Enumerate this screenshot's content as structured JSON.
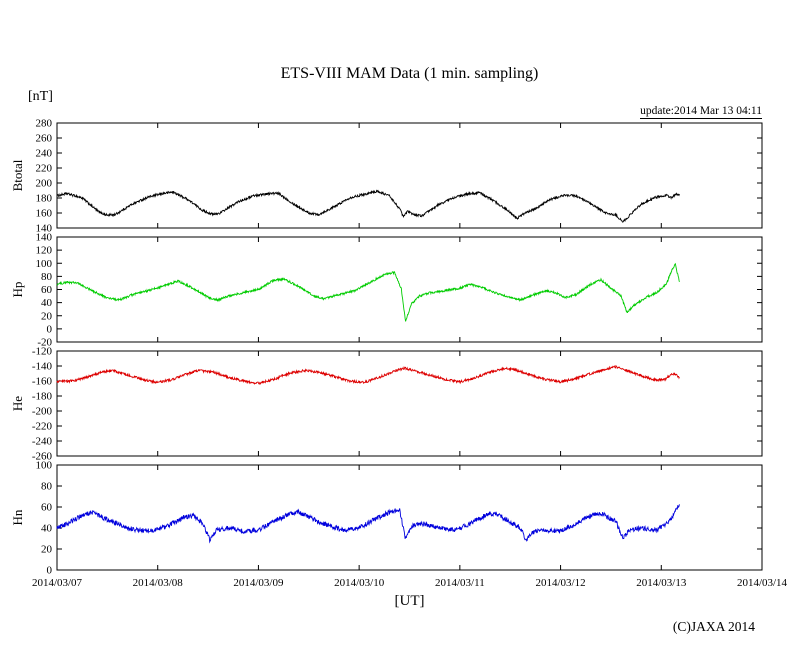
{
  "header": {
    "title": "ETS-VIII MAM Data (1 min. sampling)",
    "unit_label": "[nT]",
    "update_note": "update:2014 Mar 13 04:11"
  },
  "footer": {
    "xlabel": "[UT]",
    "copyright": "(C)JAXA 2014"
  },
  "chart_data": {
    "type": "line",
    "title": "ETS-VIII MAM Data (1 min. sampling)",
    "xlabel": "[UT]",
    "y_unit": "[nT]",
    "update_note": "update:2014 Mar 13 04:11",
    "grid": false,
    "legend": "none (per-panel y-axis titles)",
    "x_axis": {
      "tick_labels": [
        "2014/03/07",
        "2014/03/08",
        "2014/03/09",
        "2014/03/10",
        "2014/03/11",
        "2014/03/12",
        "2014/03/13",
        "2014/03/14"
      ],
      "range_days": [
        0,
        7
      ],
      "data_end_day": 6.18
    },
    "panels": [
      {
        "name": "Btotal",
        "color": "#000000",
        "ylim": [
          140,
          280
        ],
        "ytick_step": 20,
        "noise_amplitude": 1.5,
        "points_day_value": [
          [
            0.0,
            183
          ],
          [
            0.1,
            186
          ],
          [
            0.25,
            180
          ],
          [
            0.42,
            161
          ],
          [
            0.5,
            157
          ],
          [
            0.58,
            158
          ],
          [
            0.75,
            172
          ],
          [
            0.9,
            181
          ],
          [
            1.05,
            186
          ],
          [
            1.15,
            188
          ],
          [
            1.3,
            178
          ],
          [
            1.45,
            163
          ],
          [
            1.55,
            158
          ],
          [
            1.62,
            160
          ],
          [
            1.8,
            175
          ],
          [
            1.95,
            183
          ],
          [
            2.1,
            186
          ],
          [
            2.2,
            186
          ],
          [
            2.35,
            172
          ],
          [
            2.5,
            160
          ],
          [
            2.6,
            158
          ],
          [
            2.75,
            168
          ],
          [
            2.9,
            180
          ],
          [
            3.05,
            185
          ],
          [
            3.18,
            189
          ],
          [
            3.3,
            183
          ],
          [
            3.4,
            166
          ],
          [
            3.44,
            155
          ],
          [
            3.48,
            162
          ],
          [
            3.55,
            158
          ],
          [
            3.62,
            156
          ],
          [
            3.8,
            172
          ],
          [
            3.95,
            181
          ],
          [
            4.1,
            186
          ],
          [
            4.2,
            187
          ],
          [
            4.35,
            175
          ],
          [
            4.5,
            161
          ],
          [
            4.57,
            153
          ],
          [
            4.62,
            158
          ],
          [
            4.75,
            166
          ],
          [
            4.9,
            178
          ],
          [
            5.05,
            184
          ],
          [
            5.15,
            183
          ],
          [
            5.3,
            172
          ],
          [
            5.45,
            160
          ],
          [
            5.55,
            157
          ],
          [
            5.62,
            148
          ],
          [
            5.68,
            156
          ],
          [
            5.8,
            172
          ],
          [
            5.95,
            181
          ],
          [
            6.05,
            184
          ],
          [
            6.1,
            180
          ],
          [
            6.15,
            186
          ],
          [
            6.18,
            184
          ]
        ]
      },
      {
        "name": "Hp",
        "color": "#00cc00",
        "ylim": [
          -20,
          140
        ],
        "ytick_step": 20,
        "noise_amplitude": 1.6,
        "points_day_value": [
          [
            0.0,
            68
          ],
          [
            0.1,
            71
          ],
          [
            0.2,
            70
          ],
          [
            0.35,
            58
          ],
          [
            0.5,
            47
          ],
          [
            0.62,
            44
          ],
          [
            0.75,
            52
          ],
          [
            0.9,
            58
          ],
          [
            1.05,
            65
          ],
          [
            1.2,
            73
          ],
          [
            1.35,
            62
          ],
          [
            1.5,
            48
          ],
          [
            1.6,
            44
          ],
          [
            1.7,
            50
          ],
          [
            1.85,
            55
          ],
          [
            2.0,
            60
          ],
          [
            2.15,
            74
          ],
          [
            2.25,
            76
          ],
          [
            2.4,
            65
          ],
          [
            2.55,
            50
          ],
          [
            2.65,
            46
          ],
          [
            2.8,
            52
          ],
          [
            2.95,
            58
          ],
          [
            3.1,
            70
          ],
          [
            3.25,
            83
          ],
          [
            3.35,
            86
          ],
          [
            3.42,
            60
          ],
          [
            3.46,
            12
          ],
          [
            3.52,
            38
          ],
          [
            3.6,
            50
          ],
          [
            3.7,
            55
          ],
          [
            3.85,
            58
          ],
          [
            4.0,
            62
          ],
          [
            4.1,
            68
          ],
          [
            4.2,
            64
          ],
          [
            4.35,
            55
          ],
          [
            4.5,
            48
          ],
          [
            4.6,
            44
          ],
          [
            4.7,
            50
          ],
          [
            4.85,
            58
          ],
          [
            4.95,
            55
          ],
          [
            5.05,
            48
          ],
          [
            5.15,
            52
          ],
          [
            5.3,
            68
          ],
          [
            5.4,
            75
          ],
          [
            5.5,
            62
          ],
          [
            5.6,
            50
          ],
          [
            5.66,
            25
          ],
          [
            5.72,
            35
          ],
          [
            5.85,
            48
          ],
          [
            5.95,
            55
          ],
          [
            6.05,
            68
          ],
          [
            6.1,
            88
          ],
          [
            6.14,
            98
          ],
          [
            6.18,
            72
          ]
        ]
      },
      {
        "name": "He",
        "color": "#dd0000",
        "ylim": [
          -260,
          -120
        ],
        "ytick_step": 20,
        "noise_amplitude": 1.6,
        "points_day_value": [
          [
            0.0,
            -161
          ],
          [
            0.15,
            -160
          ],
          [
            0.3,
            -155
          ],
          [
            0.45,
            -148
          ],
          [
            0.55,
            -146
          ],
          [
            0.7,
            -152
          ],
          [
            0.85,
            -158
          ],
          [
            1.0,
            -162
          ],
          [
            1.15,
            -158
          ],
          [
            1.3,
            -150
          ],
          [
            1.4,
            -146
          ],
          [
            1.55,
            -148
          ],
          [
            1.7,
            -155
          ],
          [
            1.85,
            -160
          ],
          [
            2.0,
            -163
          ],
          [
            2.15,
            -158
          ],
          [
            2.3,
            -150
          ],
          [
            2.45,
            -146
          ],
          [
            2.6,
            -148
          ],
          [
            2.75,
            -154
          ],
          [
            2.9,
            -160
          ],
          [
            3.05,
            -162
          ],
          [
            3.2,
            -155
          ],
          [
            3.35,
            -147
          ],
          [
            3.45,
            -143
          ],
          [
            3.55,
            -146
          ],
          [
            3.7,
            -152
          ],
          [
            3.85,
            -158
          ],
          [
            4.0,
            -161
          ],
          [
            4.15,
            -156
          ],
          [
            4.3,
            -148
          ],
          [
            4.45,
            -143
          ],
          [
            4.55,
            -145
          ],
          [
            4.7,
            -152
          ],
          [
            4.85,
            -158
          ],
          [
            5.0,
            -161
          ],
          [
            5.15,
            -157
          ],
          [
            5.3,
            -150
          ],
          [
            5.45,
            -144
          ],
          [
            5.55,
            -141
          ],
          [
            5.65,
            -146
          ],
          [
            5.8,
            -153
          ],
          [
            5.95,
            -159
          ],
          [
            6.05,
            -157
          ],
          [
            6.1,
            -150
          ],
          [
            6.15,
            -152
          ],
          [
            6.18,
            -156
          ]
        ]
      },
      {
        "name": "Hn",
        "color": "#0000dd",
        "ylim": [
          0,
          100
        ],
        "ytick_step": 20,
        "noise_amplitude": 2.2,
        "points_day_value": [
          [
            0.0,
            40
          ],
          [
            0.1,
            44
          ],
          [
            0.25,
            52
          ],
          [
            0.35,
            55
          ],
          [
            0.5,
            48
          ],
          [
            0.65,
            42
          ],
          [
            0.8,
            38
          ],
          [
            0.95,
            37
          ],
          [
            1.1,
            42
          ],
          [
            1.25,
            50
          ],
          [
            1.35,
            52
          ],
          [
            1.45,
            44
          ],
          [
            1.52,
            28
          ],
          [
            1.58,
            38
          ],
          [
            1.7,
            40
          ],
          [
            1.85,
            37
          ],
          [
            2.0,
            38
          ],
          [
            2.15,
            46
          ],
          [
            2.3,
            53
          ],
          [
            2.4,
            55
          ],
          [
            2.55,
            48
          ],
          [
            2.7,
            42
          ],
          [
            2.85,
            38
          ],
          [
            3.0,
            40
          ],
          [
            3.15,
            48
          ],
          [
            3.3,
            55
          ],
          [
            3.4,
            58
          ],
          [
            3.46,
            30
          ],
          [
            3.52,
            42
          ],
          [
            3.65,
            44
          ],
          [
            3.8,
            40
          ],
          [
            3.95,
            38
          ],
          [
            4.1,
            44
          ],
          [
            4.25,
            52
          ],
          [
            4.35,
            54
          ],
          [
            4.5,
            46
          ],
          [
            4.6,
            40
          ],
          [
            4.66,
            28
          ],
          [
            4.72,
            36
          ],
          [
            4.85,
            38
          ],
          [
            5.0,
            37
          ],
          [
            5.15,
            44
          ],
          [
            5.3,
            52
          ],
          [
            5.4,
            54
          ],
          [
            5.55,
            46
          ],
          [
            5.62,
            30
          ],
          [
            5.68,
            38
          ],
          [
            5.8,
            40
          ],
          [
            5.95,
            38
          ],
          [
            6.05,
            44
          ],
          [
            6.12,
            52
          ],
          [
            6.18,
            63
          ]
        ]
      }
    ]
  }
}
